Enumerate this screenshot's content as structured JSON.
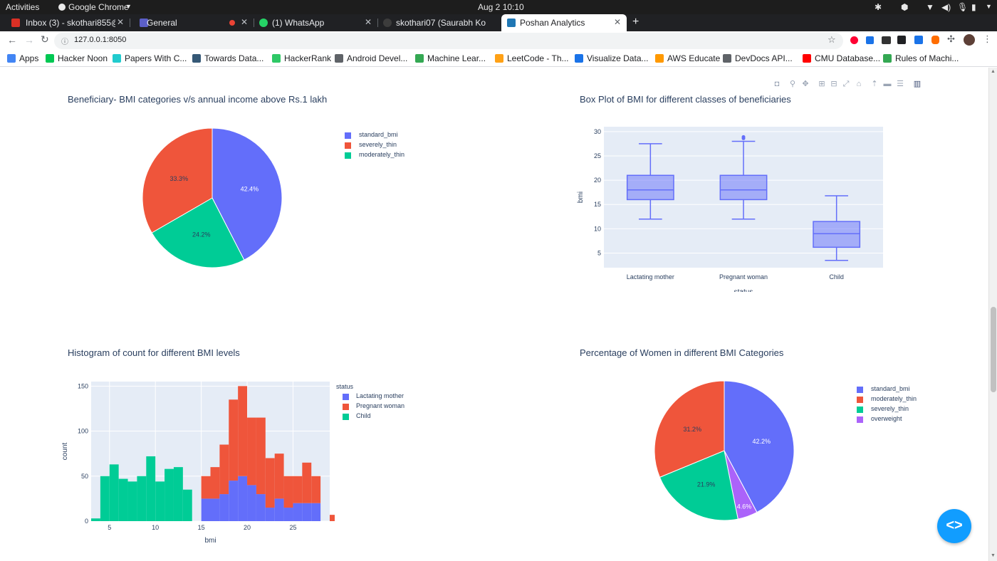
{
  "system_bar": {
    "activities": "Activities",
    "app_name": "Google Chrome",
    "clock": "Aug 2  10:10"
  },
  "tabs": [
    {
      "title": "Inbox (3) - skothari855@g",
      "color": "#d93025"
    },
    {
      "title": "General",
      "color": "#5b5fc7"
    },
    {
      "title": "(1) WhatsApp",
      "color": "#25d366"
    },
    {
      "title": "skothari07 (Saurabh Koth",
      "color": "#24292e"
    },
    {
      "title": "Poshan Analytics",
      "color": "#1f77b4"
    }
  ],
  "toolbar": {
    "url": "127.0.0.1:8050"
  },
  "bookmarks": [
    {
      "label": "Apps",
      "color": "#4285f4"
    },
    {
      "label": "Hacker Noon",
      "color": "#00c853"
    },
    {
      "label": "Papers With C...",
      "color": "#21cbce"
    },
    {
      "label": "Towards Data...",
      "color": "#355876"
    },
    {
      "label": "HackerRank",
      "color": "#2ec866"
    },
    {
      "label": "Android Devel...",
      "color": "#5f6368"
    },
    {
      "label": "Machine Lear...",
      "color": "#34a853"
    },
    {
      "label": "LeetCode - Th...",
      "color": "#ffa116"
    },
    {
      "label": "Visualize Data...",
      "color": "#1a73e8"
    },
    {
      "label": "AWS Educate",
      "color": "#ff9900"
    },
    {
      "label": "DevDocs API...",
      "color": "#5f6368"
    },
    {
      "label": "CMU Database...",
      "color": "#ff0000"
    },
    {
      "label": "Rules of Machi...",
      "color": "#34a853"
    }
  ],
  "charts": {
    "pie1": {
      "title": "Beneficiary- BMI categories v/s annual income above Rs.1 lakh",
      "chart_data": {
        "type": "pie",
        "labels": [
          "standard_bmi",
          "severely_thin",
          "moderately_thin"
        ],
        "values": [
          42.4,
          33.3,
          24.2
        ],
        "text_labels": [
          "42.4%",
          "33.3%",
          "24.2%"
        ],
        "colors": [
          "#636efa",
          "#ef553b",
          "#00cc96"
        ],
        "legend": "right"
      }
    },
    "box": {
      "title": "Box Plot of BMI for different classes of beneficiaries",
      "chart_data": {
        "type": "box",
        "categories": [
          "Lactating mother",
          "Pregnant woman",
          "Child"
        ],
        "boxes": [
          {
            "min": 12,
            "q1": 16,
            "median": 18,
            "q3": 21,
            "max": 27.5,
            "outliers": []
          },
          {
            "min": 12,
            "q1": 16,
            "median": 18,
            "q3": 21,
            "max": 28,
            "outliers": [
              28.6,
              28.9
            ]
          },
          {
            "min": 3.5,
            "q1": 6.2,
            "median": 9,
            "q3": 11.5,
            "max": 16.8,
            "outliers": []
          }
        ],
        "xlabel": "status",
        "ylabel": "bmi",
        "ylim": [
          2,
          31
        ],
        "yticks": [
          5,
          10,
          15,
          20,
          25,
          30
        ],
        "color": "#636efa"
      }
    },
    "hist": {
      "title": "Histogram of count for different BMI levels",
      "chart_data": {
        "type": "bar",
        "stacked": true,
        "x_start": 3,
        "bin_width": 1,
        "series": [
          {
            "name": "Lactating mother",
            "color": "#636efa",
            "values": [
              0,
              0,
              0,
              0,
              0,
              0,
              0,
              0,
              0,
              0,
              0,
              0,
              25,
              25,
              30,
              45,
              50,
              40,
              30,
              15,
              25,
              15,
              20,
              20,
              20,
              0,
              0,
              0
            ]
          },
          {
            "name": "Pregnant woman",
            "color": "#ef553b",
            "values": [
              0,
              0,
              0,
              0,
              0,
              0,
              0,
              0,
              0,
              0,
              0,
              0,
              25,
              35,
              55,
              90,
              100,
              75,
              85,
              55,
              50,
              35,
              30,
              45,
              30,
              0,
              7,
              5
            ]
          },
          {
            "name": "Child",
            "color": "#00cc96",
            "values": [
              3,
              50,
              63,
              47,
              44,
              50,
              72,
              44,
              58,
              60,
              35,
              0,
              0,
              0,
              0,
              0,
              0,
              0,
              0,
              0,
              0,
              0,
              0,
              0,
              0,
              0,
              0,
              0
            ]
          }
        ],
        "xlabel": "bmi",
        "ylabel": "count",
        "xlim": [
          3,
          29
        ],
        "ylim": [
          0,
          155
        ],
        "xticks": [
          5,
          10,
          15,
          20,
          25
        ],
        "yticks": [
          0,
          50,
          100,
          150
        ],
        "legend_title": "status"
      }
    },
    "pie2": {
      "title": "Percentage of Women in different BMI Categories",
      "chart_data": {
        "type": "pie",
        "labels": [
          "standard_bmi",
          "moderately_thin",
          "severely_thin",
          "overweight"
        ],
        "values": [
          42.2,
          31.2,
          21.9,
          4.6
        ],
        "text_labels": [
          "42.2%",
          "31.2%",
          "21.9%",
          "4.6%"
        ],
        "slice_order": [
          0,
          3,
          2,
          1
        ],
        "colors": [
          "#636efa",
          "#ef553b",
          "#00cc96",
          "#ab63fa"
        ],
        "legend": "right"
      }
    }
  }
}
